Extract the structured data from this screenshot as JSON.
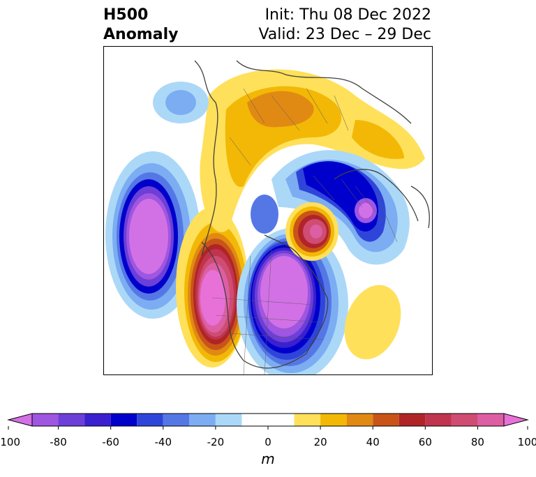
{
  "title": {
    "left_line1": "H500",
    "left_line2": "Anomaly",
    "init": "Init: Thu 08 Dec 2022",
    "valid": "Valid: 23 Dec – 29 Dec"
  },
  "colorbar": {
    "unit": "m",
    "tick_labels": [
      "-100",
      "-80",
      "-60",
      "-40",
      "-20",
      "0",
      "20",
      "40",
      "60",
      "80",
      "100"
    ],
    "levels": [
      -100,
      -90,
      -80,
      -70,
      -60,
      -50,
      -40,
      -30,
      -20,
      -10,
      10,
      20,
      30,
      40,
      50,
      60,
      70,
      80,
      90,
      100
    ],
    "colors": [
      "#d271e6",
      "#9f56e0",
      "#6c3fd8",
      "#3a20cf",
      "#0000cc",
      "#2f45d9",
      "#5577e6",
      "#7cadf2",
      "#acd8f8",
      "#ffffff",
      "#ffe05a",
      "#f2b805",
      "#e08a14",
      "#c95418",
      "#b02428",
      "#c0344d",
      "#cf4c73",
      "#dc5fa4",
      "#e871d8"
    ]
  }
}
